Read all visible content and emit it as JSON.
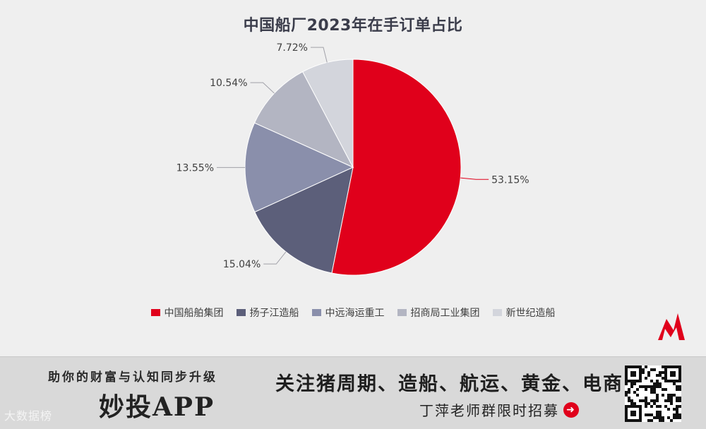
{
  "chart_data": {
    "type": "pie",
    "title": "中国船厂2023年在手订单占比",
    "categories": [
      "中国船舶集团",
      "扬子江造船",
      "中远海运重工",
      "招商局工业集团",
      "新世纪造船"
    ],
    "values": [
      53.15,
      15.04,
      13.55,
      10.54,
      7.72
    ],
    "labels": [
      "53.15%",
      "15.04%",
      "13.55%",
      "10.54%",
      "7.72%"
    ],
    "colors": [
      "#e0001b",
      "#5c5f7a",
      "#8a8fab",
      "#b3b5c2",
      "#d3d5dc"
    ],
    "legend": "bottom"
  },
  "banner": {
    "slogan": "助你的财富与认知同步升级",
    "app_name": "妙投APP",
    "topics": "关注猪周期、造船、航运、黄金、电商",
    "cta": "丁萍老师群限时招募",
    "watermark": "大数据榜"
  }
}
